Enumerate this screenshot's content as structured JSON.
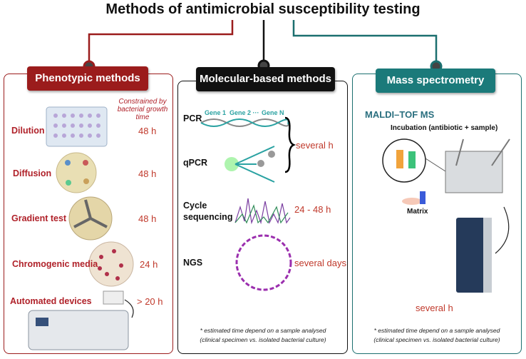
{
  "title": "Methods of antimicrobial susceptibility testing",
  "phenotypic": {
    "heading": "Phenotypic methods",
    "note": "Constrained by bacterial growth time",
    "items": [
      {
        "label": "Dilution",
        "time": "48 h"
      },
      {
        "label": "Diffusion",
        "time": "48 h"
      },
      {
        "label": "Gradient test",
        "time": "48 h"
      },
      {
        "label": "Chromogenic media",
        "time": "24 h"
      },
      {
        "label": "Automated devices",
        "time": "> 20 h"
      }
    ]
  },
  "molecular": {
    "heading": "Molecular-based methods",
    "genes": [
      "Gene 1",
      "Gene 2 ···",
      "Gene N"
    ],
    "items": [
      {
        "label": "PCR"
      },
      {
        "label": "qPCR"
      },
      {
        "label": "Cycle sequencing",
        "time": "24 - 48 h"
      },
      {
        "label": "NGS",
        "time": "several days"
      }
    ],
    "pcr_time": "several h",
    "footnote": [
      "* estimated time depend on a sample analysed",
      "(clinical specimen vs. isolated bacterial culture)"
    ]
  },
  "mass_spec": {
    "heading": "Mass spectrometry",
    "method": "MALDI–TOF MS",
    "incubation": "Incubation (antibiotic + sample)",
    "matrix": "Matrix",
    "time": "several h",
    "footnote": [
      "* estimated time depend on a sample analysed",
      "(clinical specimen vs. isolated bacterial culture)"
    ]
  }
}
